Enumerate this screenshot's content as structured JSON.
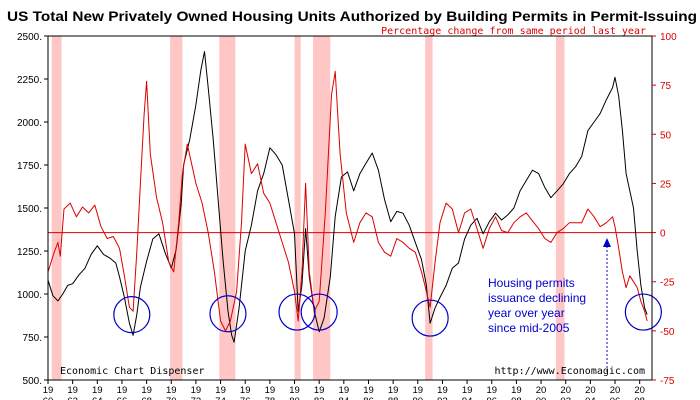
{
  "chart_data": {
    "type": "line",
    "title": "US Total New Privately Owned Housing Units Authorized by Building Permits in Permit-Issuing",
    "right_axis_label": "Percentage change from same period last year",
    "left_axis": {
      "range": [
        500,
        2500
      ],
      "ticks": [
        "500.",
        "750.",
        "1000.",
        "1250.",
        "1500.",
        "1750.",
        "2000.",
        "2250.",
        "2500."
      ]
    },
    "right_axis": {
      "range": [
        -75,
        100
      ],
      "ticks": [
        "-75",
        "-50",
        "-25",
        "0",
        "25",
        "50",
        "75",
        "100"
      ]
    },
    "x_axis": {
      "range": [
        1960,
        2009
      ],
      "ticks": [
        {
          "year": 1960,
          "top": "19",
          "bottom": "60"
        },
        {
          "year": 1962,
          "top": "19",
          "bottom": "62"
        },
        {
          "year": 1964,
          "top": "19",
          "bottom": "64"
        },
        {
          "year": 1966,
          "top": "19",
          "bottom": "66"
        },
        {
          "year": 1968,
          "top": "19",
          "bottom": "68"
        },
        {
          "year": 1970,
          "top": "19",
          "bottom": "70"
        },
        {
          "year": 1972,
          "top": "19",
          "bottom": "72"
        },
        {
          "year": 1974,
          "top": "19",
          "bottom": "74"
        },
        {
          "year": 1976,
          "top": "19",
          "bottom": "76"
        },
        {
          "year": 1978,
          "top": "19",
          "bottom": "78"
        },
        {
          "year": 1980,
          "top": "19",
          "bottom": "80"
        },
        {
          "year": 1982,
          "top": "19",
          "bottom": "82"
        },
        {
          "year": 1984,
          "top": "19",
          "bottom": "84"
        },
        {
          "year": 1986,
          "top": "19",
          "bottom": "86"
        },
        {
          "year": 1988,
          "top": "19",
          "bottom": "88"
        },
        {
          "year": 1990,
          "top": "19",
          "bottom": "90"
        },
        {
          "year": 1992,
          "top": "19",
          "bottom": "92"
        },
        {
          "year": 1994,
          "top": "19",
          "bottom": "94"
        },
        {
          "year": 1996,
          "top": "19",
          "bottom": "96"
        },
        {
          "year": 1998,
          "top": "19",
          "bottom": "98"
        },
        {
          "year": 2000,
          "top": "20",
          "bottom": "00"
        },
        {
          "year": 2002,
          "top": "20",
          "bottom": "02"
        },
        {
          "year": 2004,
          "top": "20",
          "bottom": "04"
        },
        {
          "year": 2006,
          "top": "20",
          "bottom": "06"
        },
        {
          "year": 2008,
          "top": "20",
          "bottom": "08"
        }
      ]
    },
    "recessions": [
      [
        1960.3,
        1961.1
      ],
      [
        1969.9,
        1970.9
      ],
      [
        1973.9,
        1975.2
      ],
      [
        1980.0,
        1980.5
      ],
      [
        1981.5,
        1982.9
      ],
      [
        1990.6,
        1991.2
      ],
      [
        2001.2,
        2001.9
      ]
    ],
    "series": [
      {
        "name": "Permits",
        "axis": "left",
        "color": "#000000",
        "points": [
          [
            1960.0,
            1080
          ],
          [
            1960.4,
            990
          ],
          [
            1960.8,
            960
          ],
          [
            1961.2,
            1000
          ],
          [
            1961.6,
            1050
          ],
          [
            1962.0,
            1060
          ],
          [
            1962.5,
            1110
          ],
          [
            1963.0,
            1150
          ],
          [
            1963.5,
            1230
          ],
          [
            1964.0,
            1280
          ],
          [
            1964.5,
            1230
          ],
          [
            1965.0,
            1210
          ],
          [
            1965.5,
            1180
          ],
          [
            1965.8,
            1100
          ],
          [
            1966.2,
            980
          ],
          [
            1966.6,
            830
          ],
          [
            1966.9,
            760
          ],
          [
            1967.2,
            880
          ],
          [
            1967.5,
            1040
          ],
          [
            1968.0,
            1190
          ],
          [
            1968.5,
            1320
          ],
          [
            1969.0,
            1350
          ],
          [
            1969.5,
            1240
          ],
          [
            1970.0,
            1150
          ],
          [
            1970.4,
            1260
          ],
          [
            1970.8,
            1520
          ],
          [
            1971.0,
            1750
          ],
          [
            1971.5,
            1900
          ],
          [
            1972.0,
            2100
          ],
          [
            1972.4,
            2300
          ],
          [
            1972.7,
            2410
          ],
          [
            1973.0,
            2200
          ],
          [
            1973.4,
            1900
          ],
          [
            1973.8,
            1550
          ],
          [
            1974.2,
            1200
          ],
          [
            1974.6,
            900
          ],
          [
            1974.9,
            760
          ],
          [
            1975.1,
            720
          ],
          [
            1975.5,
            920
          ],
          [
            1976.0,
            1250
          ],
          [
            1976.5,
            1400
          ],
          [
            1977.0,
            1600
          ],
          [
            1977.5,
            1700
          ],
          [
            1978.0,
            1850
          ],
          [
            1978.5,
            1810
          ],
          [
            1979.0,
            1750
          ],
          [
            1979.5,
            1550
          ],
          [
            1980.0,
            1350
          ],
          [
            1980.3,
            900
          ],
          [
            1980.6,
            1050
          ],
          [
            1980.9,
            1380
          ],
          [
            1981.2,
            1100
          ],
          [
            1981.6,
            900
          ],
          [
            1982.0,
            780
          ],
          [
            1982.4,
            860
          ],
          [
            1982.9,
            1100
          ],
          [
            1983.3,
            1450
          ],
          [
            1983.8,
            1680
          ],
          [
            1984.3,
            1710
          ],
          [
            1984.8,
            1600
          ],
          [
            1985.3,
            1700
          ],
          [
            1985.8,
            1760
          ],
          [
            1986.3,
            1820
          ],
          [
            1986.8,
            1720
          ],
          [
            1987.3,
            1550
          ],
          [
            1987.8,
            1420
          ],
          [
            1988.3,
            1480
          ],
          [
            1988.8,
            1470
          ],
          [
            1989.3,
            1400
          ],
          [
            1989.8,
            1300
          ],
          [
            1990.3,
            1200
          ],
          [
            1990.7,
            1050
          ],
          [
            1991.0,
            830
          ],
          [
            1991.4,
            920
          ],
          [
            1991.8,
            980
          ],
          [
            1992.3,
            1050
          ],
          [
            1992.8,
            1150
          ],
          [
            1993.3,
            1180
          ],
          [
            1993.8,
            1320
          ],
          [
            1994.3,
            1400
          ],
          [
            1994.8,
            1440
          ],
          [
            1995.3,
            1350
          ],
          [
            1995.8,
            1420
          ],
          [
            1996.3,
            1470
          ],
          [
            1996.8,
            1430
          ],
          [
            1997.3,
            1460
          ],
          [
            1997.8,
            1500
          ],
          [
            1998.3,
            1600
          ],
          [
            1998.8,
            1660
          ],
          [
            1999.3,
            1720
          ],
          [
            1999.8,
            1700
          ],
          [
            2000.3,
            1620
          ],
          [
            2000.8,
            1560
          ],
          [
            2001.3,
            1600
          ],
          [
            2001.8,
            1640
          ],
          [
            2002.3,
            1700
          ],
          [
            2002.8,
            1740
          ],
          [
            2003.3,
            1800
          ],
          [
            2003.8,
            1950
          ],
          [
            2004.3,
            2000
          ],
          [
            2004.8,
            2050
          ],
          [
            2005.3,
            2130
          ],
          [
            2005.8,
            2200
          ],
          [
            2006.0,
            2260
          ],
          [
            2006.3,
            2150
          ],
          [
            2006.6,
            1950
          ],
          [
            2006.9,
            1700
          ],
          [
            2007.2,
            1600
          ],
          [
            2007.5,
            1500
          ],
          [
            2007.8,
            1250
          ],
          [
            2008.1,
            1050
          ],
          [
            2008.4,
            920
          ],
          [
            2008.6,
            880
          ]
        ]
      },
      {
        "name": "Percentage change from same period last year",
        "axis": "right",
        "color": "#dd0000",
        "points": [
          [
            1960.0,
            -20
          ],
          [
            1960.5,
            -10
          ],
          [
            1960.8,
            -5
          ],
          [
            1961.0,
            -12
          ],
          [
            1961.3,
            12
          ],
          [
            1961.8,
            15
          ],
          [
            1962.3,
            8
          ],
          [
            1962.8,
            13
          ],
          [
            1963.3,
            10
          ],
          [
            1963.8,
            14
          ],
          [
            1964.3,
            3
          ],
          [
            1964.8,
            -3
          ],
          [
            1965.3,
            -2
          ],
          [
            1965.8,
            -8
          ],
          [
            1966.2,
            -22
          ],
          [
            1966.6,
            -38
          ],
          [
            1966.9,
            -40
          ],
          [
            1967.2,
            -10
          ],
          [
            1967.5,
            25
          ],
          [
            1967.8,
            60
          ],
          [
            1968.0,
            77
          ],
          [
            1968.3,
            40
          ],
          [
            1968.8,
            18
          ],
          [
            1969.3,
            5
          ],
          [
            1969.8,
            -15
          ],
          [
            1970.2,
            -20
          ],
          [
            1970.6,
            5
          ],
          [
            1970.9,
            30
          ],
          [
            1971.3,
            45
          ],
          [
            1972.0,
            25
          ],
          [
            1972.5,
            15
          ],
          [
            1973.0,
            0
          ],
          [
            1973.5,
            -20
          ],
          [
            1974.0,
            -45
          ],
          [
            1974.4,
            -50
          ],
          [
            1974.8,
            -45
          ],
          [
            1975.3,
            -30
          ],
          [
            1975.7,
            5
          ],
          [
            1976.0,
            45
          ],
          [
            1976.5,
            30
          ],
          [
            1977.0,
            35
          ],
          [
            1977.5,
            20
          ],
          [
            1978.0,
            15
          ],
          [
            1978.5,
            5
          ],
          [
            1979.0,
            -5
          ],
          [
            1979.5,
            -15
          ],
          [
            1980.0,
            -30
          ],
          [
            1980.3,
            -45
          ],
          [
            1980.6,
            -20
          ],
          [
            1980.9,
            25
          ],
          [
            1981.2,
            -20
          ],
          [
            1981.6,
            -40
          ],
          [
            1982.0,
            -35
          ],
          [
            1982.5,
            10
          ],
          [
            1983.0,
            70
          ],
          [
            1983.3,
            82
          ],
          [
            1983.7,
            40
          ],
          [
            1984.2,
            10
          ],
          [
            1984.8,
            -5
          ],
          [
            1985.3,
            5
          ],
          [
            1985.8,
            10
          ],
          [
            1986.3,
            8
          ],
          [
            1986.8,
            -5
          ],
          [
            1987.3,
            -10
          ],
          [
            1987.8,
            -12
          ],
          [
            1988.3,
            -3
          ],
          [
            1988.8,
            -5
          ],
          [
            1989.3,
            -8
          ],
          [
            1989.8,
            -10
          ],
          [
            1990.3,
            -20
          ],
          [
            1990.7,
            -30
          ],
          [
            1991.0,
            -38
          ],
          [
            1991.4,
            -15
          ],
          [
            1991.8,
            5
          ],
          [
            1992.3,
            15
          ],
          [
            1992.8,
            12
          ],
          [
            1993.3,
            0
          ],
          [
            1993.8,
            10
          ],
          [
            1994.3,
            12
          ],
          [
            1994.8,
            2
          ],
          [
            1995.3,
            -8
          ],
          [
            1995.8,
            2
          ],
          [
            1996.3,
            8
          ],
          [
            1996.8,
            1
          ],
          [
            1997.3,
            0
          ],
          [
            1997.8,
            5
          ],
          [
            1998.3,
            8
          ],
          [
            1998.8,
            10
          ],
          [
            1999.3,
            6
          ],
          [
            1999.8,
            2
          ],
          [
            2000.3,
            -3
          ],
          [
            2000.8,
            -5
          ],
          [
            2001.3,
            0
          ],
          [
            2001.8,
            2
          ],
          [
            2002.3,
            5
          ],
          [
            2002.8,
            5
          ],
          [
            2003.3,
            5
          ],
          [
            2003.8,
            12
          ],
          [
            2004.3,
            8
          ],
          [
            2004.8,
            3
          ],
          [
            2005.3,
            5
          ],
          [
            2005.8,
            8
          ],
          [
            2006.0,
            3
          ],
          [
            2006.3,
            -8
          ],
          [
            2006.6,
            -20
          ],
          [
            2006.9,
            -28
          ],
          [
            2007.2,
            -22
          ],
          [
            2007.5,
            -25
          ],
          [
            2007.8,
            -28
          ],
          [
            2008.1,
            -35
          ],
          [
            2008.4,
            -40
          ],
          [
            2008.6,
            -45
          ]
        ]
      }
    ],
    "circles": [
      [
        1966.8,
        880
      ],
      [
        1974.6,
        885
      ],
      [
        1980.2,
        895
      ],
      [
        1982.0,
        895
      ],
      [
        1991.0,
        860
      ],
      [
        2008.3,
        895
      ]
    ],
    "annotations": {
      "callout": [
        "Housing permits",
        "issuance declining",
        "year over year",
        "since mid-2005"
      ],
      "left_credit": "Economic Chart Dispenser",
      "right_credit": "http://www.Economagic.com"
    }
  }
}
